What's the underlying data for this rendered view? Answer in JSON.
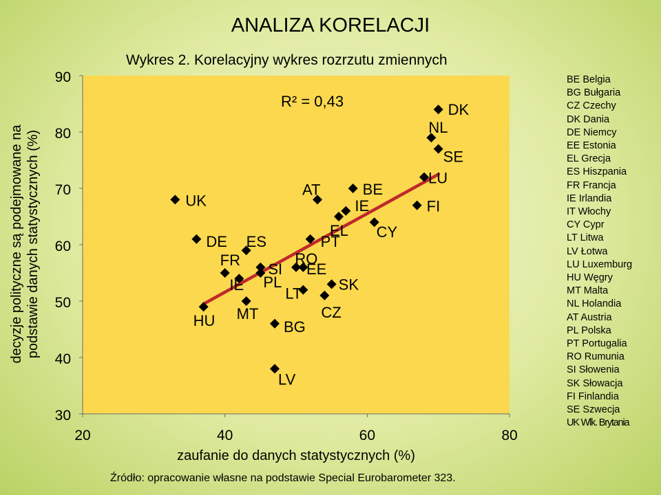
{
  "page": {
    "title": "ANALIZA KORELACJI",
    "source": "Źródło: opracowanie własne na podstawie Special Eurobarometer 323."
  },
  "chart_data": {
    "type": "scatter",
    "title": "Wykres 2. Korelacyjny wykres rozrzutu zmiennych",
    "xlabel": "zaufanie do danych statystycznych (%)",
    "ylabel": "decyzje polityczne są podejmowane na podstawie danych statystycznych (%)",
    "xlim": [
      20,
      80
    ],
    "ylim": [
      30,
      90
    ],
    "xticks": [
      20,
      40,
      60,
      80
    ],
    "yticks": [
      30,
      40,
      50,
      60,
      70,
      80,
      90
    ],
    "grid": false,
    "marker": "diamond",
    "r2_label": "R² = 0,43",
    "trendline": {
      "color": "#c0282a",
      "x": [
        37,
        70
      ],
      "y": [
        49.5,
        72.5
      ]
    },
    "colors": {
      "plot_background": "#fbd84e",
      "marker": "#000000",
      "trendline": "#c0282a"
    },
    "points": [
      {
        "label": "DK",
        "x": 70,
        "y": 84
      },
      {
        "label": "NL",
        "x": 69,
        "y": 79
      },
      {
        "label": "SE",
        "x": 70,
        "y": 77
      },
      {
        "label": "LU",
        "x": 68,
        "y": 72
      },
      {
        "label": "FI",
        "x": 67,
        "y": 67
      },
      {
        "label": "BE",
        "x": 58,
        "y": 70
      },
      {
        "label": "IE",
        "x": 57,
        "y": 66
      },
      {
        "label": "CY",
        "x": 61,
        "y": 64
      },
      {
        "label": "AT",
        "x": 53,
        "y": 68
      },
      {
        "label": "EL",
        "x": 56,
        "y": 65
      },
      {
        "label": "PT",
        "x": 52,
        "y": 61
      },
      {
        "label": "UK",
        "x": 33,
        "y": 68
      },
      {
        "label": "DE",
        "x": 36,
        "y": 61
      },
      {
        "label": "ES",
        "x": 43,
        "y": 59
      },
      {
        "label": "FR",
        "x": 40,
        "y": 55
      },
      {
        "label": "SI",
        "x": 45,
        "y": 56
      },
      {
        "label": "RO",
        "x": 51,
        "y": 56
      },
      {
        "label": "EE",
        "x": 50,
        "y": 56
      },
      {
        "label": "PL",
        "x": 45,
        "y": 55
      },
      {
        "label": "IE",
        "x": 42,
        "y": 54
      },
      {
        "label": "SK",
        "x": 55,
        "y": 53
      },
      {
        "label": "LT",
        "x": 51,
        "y": 52
      },
      {
        "label": "CZ",
        "x": 54,
        "y": 51
      },
      {
        "label": "MT",
        "x": 43,
        "y": 50
      },
      {
        "label": "HU",
        "x": 37,
        "y": 49
      },
      {
        "label": "BG",
        "x": 47,
        "y": 46
      },
      {
        "label": "LV",
        "x": 47,
        "y": 38
      }
    ],
    "legend": {
      "placement": "right",
      "entries": [
        "BE Belgia",
        "BG Bułgaria",
        "CZ Czechy",
        "DK Dania",
        "DE Niemcy",
        "EE Estonia",
        "EL Grecja",
        "ES Hiszpania",
        "FR Francja",
        "IE Irlandia",
        "IT Włochy",
        "CY Cypr",
        "LT Litwa",
        "LV Łotwa",
        "LU Luxemburg",
        "HU Węgry",
        "MT Malta",
        "NL Holandia",
        "AT Austria",
        "PL Polska",
        "PT Portugalia",
        "RO Rumunia",
        "SI Słowenia",
        "SK Słowacja",
        "FI Finlandia",
        "SE Szwecja",
        "UK Wlk. Brytania"
      ]
    }
  }
}
